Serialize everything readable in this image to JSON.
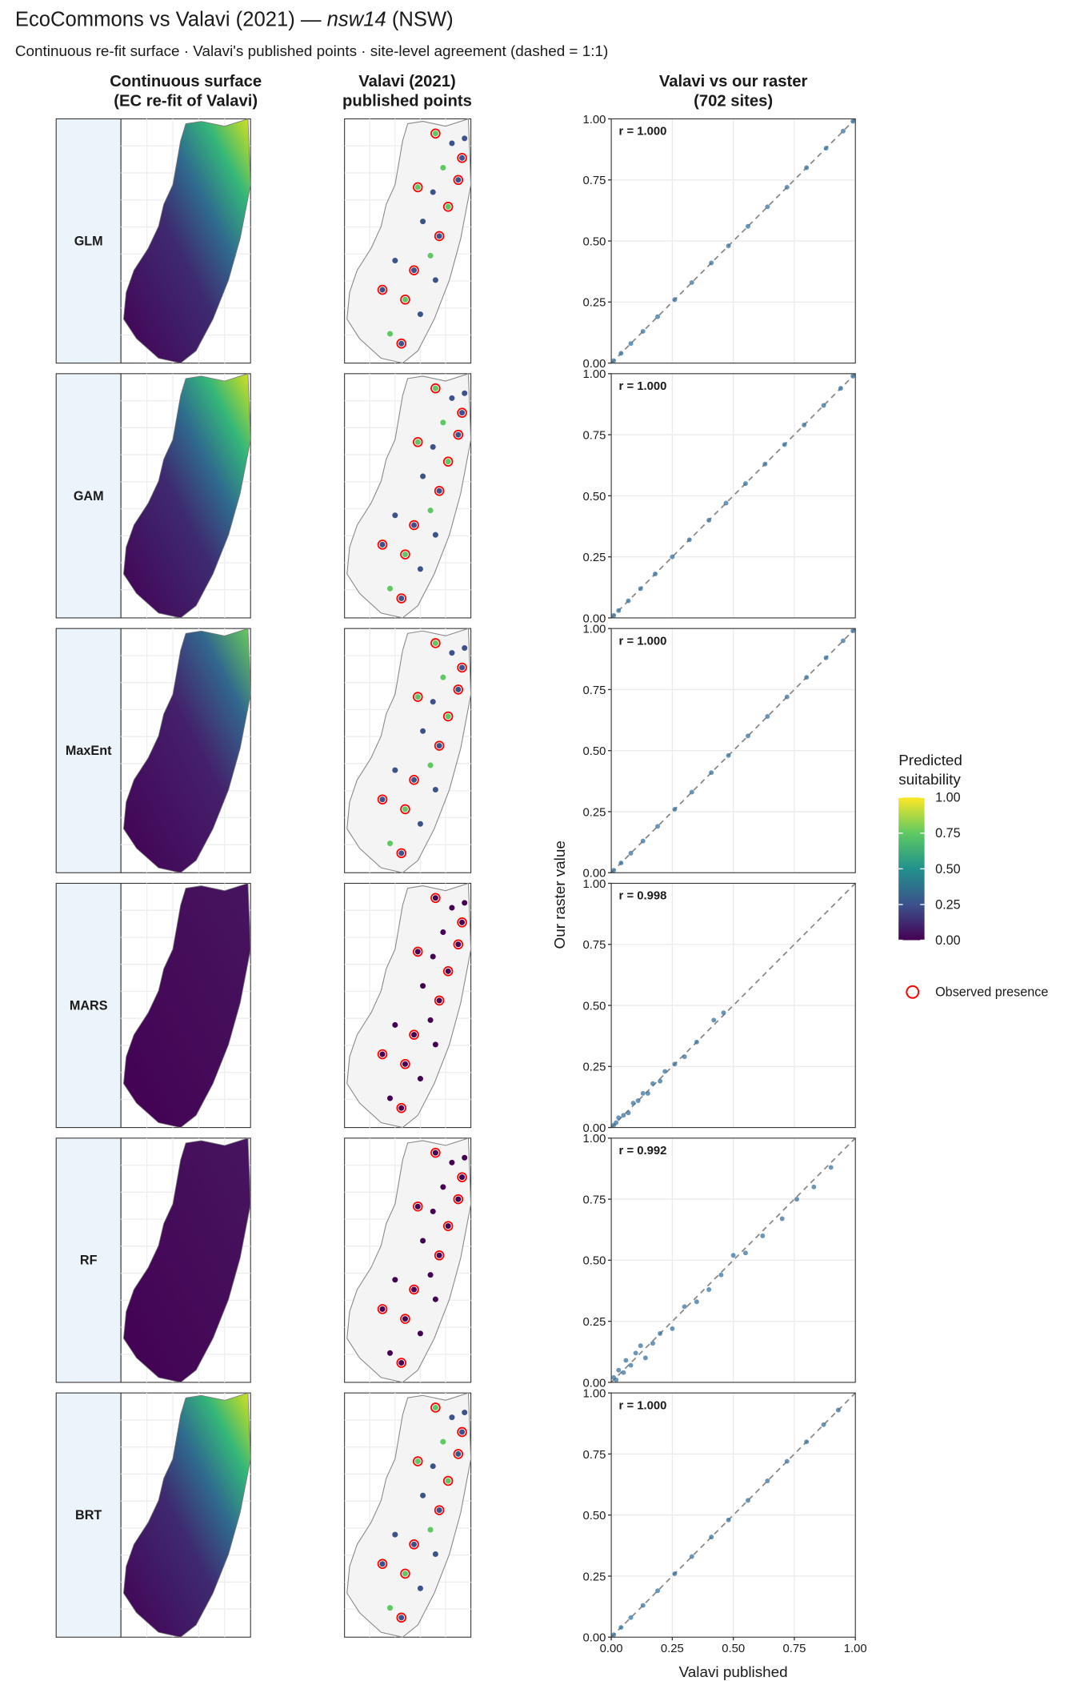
{
  "header": {
    "title": "EcoCommons vs Valavi (2021) — ",
    "title_species": "nsw14",
    "title_suffix": " (NSW)",
    "subtitle": "Continuous re-fit surface · Valavi's published points · site-level agreement (dashed = 1:1)"
  },
  "columns": [
    [
      "Continuous surface",
      "(EC re-fit of Valavi)"
    ],
    [
      "Valavi (2021)",
      "published points"
    ],
    [
      "Valavi vs our raster",
      "(702 sites)"
    ]
  ],
  "axes": {
    "xlabel": "Valavi published",
    "ylabel": "Our raster value"
  },
  "legend": {
    "title": [
      "Predicted",
      "suitability"
    ],
    "lim": [
      0,
      1
    ],
    "ticks": [
      {
        "value": 1,
        "label": "1.00"
      },
      {
        "value": 0.75,
        "label": "0.75"
      },
      {
        "value": 0.5,
        "label": "0.50"
      },
      {
        "value": 0.25,
        "label": "0.25"
      },
      {
        "value": 0,
        "label": "0.00"
      }
    ],
    "presence_label": "Observed presence",
    "presence_color": "#ff0000"
  },
  "chart_data": [
    {
      "type": "scatter",
      "panel": "GLM",
      "annotation": "r = 1.000",
      "color": "#3a73a0",
      "surface": "bright",
      "x": [
        0.01,
        0.04,
        0.08,
        0.13,
        0.19,
        0.26,
        0.33,
        0.41,
        0.48,
        0.56,
        0.64,
        0.72,
        0.8,
        0.88,
        0.95,
        0.99
      ],
      "y": [
        0.01,
        0.04,
        0.08,
        0.13,
        0.19,
        0.26,
        0.33,
        0.41,
        0.48,
        0.56,
        0.64,
        0.72,
        0.8,
        0.88,
        0.95,
        0.99
      ],
      "xlim": [
        0,
        1
      ],
      "ylim": [
        0,
        1
      ],
      "yticks": [
        {
          "value": 0,
          "label": "0.00"
        },
        {
          "value": 0.25,
          "label": "0.25"
        },
        {
          "value": 0.5,
          "label": "0.50"
        },
        {
          "value": 0.75,
          "label": "0.75"
        },
        {
          "value": 1,
          "label": "1.00"
        }
      ]
    },
    {
      "type": "scatter",
      "panel": "GAM",
      "annotation": "r = 1.000",
      "color": "#3a73a0",
      "surface": "bright",
      "x": [
        0.01,
        0.03,
        0.07,
        0.12,
        0.18,
        0.25,
        0.32,
        0.4,
        0.47,
        0.55,
        0.63,
        0.71,
        0.79,
        0.87,
        0.94,
        0.99
      ],
      "y": [
        0.01,
        0.03,
        0.07,
        0.12,
        0.18,
        0.25,
        0.32,
        0.4,
        0.47,
        0.55,
        0.63,
        0.71,
        0.79,
        0.87,
        0.94,
        0.99
      ],
      "xlim": [
        0,
        1
      ],
      "ylim": [
        0,
        1
      ],
      "yticks": [
        {
          "value": 0,
          "label": "0.00"
        },
        {
          "value": 0.25,
          "label": "0.25"
        },
        {
          "value": 0.5,
          "label": "0.50"
        },
        {
          "value": 0.75,
          "label": "0.75"
        },
        {
          "value": 1,
          "label": "1.00"
        }
      ]
    },
    {
      "type": "scatter",
      "panel": "MaxEnt",
      "annotation": "r = 1.000",
      "color": "#3a73a0",
      "surface": "medium",
      "x": [
        0.01,
        0.04,
        0.08,
        0.13,
        0.19,
        0.26,
        0.33,
        0.41,
        0.48,
        0.56,
        0.64,
        0.72,
        0.8,
        0.88,
        0.95,
        0.99
      ],
      "y": [
        0.01,
        0.04,
        0.08,
        0.13,
        0.19,
        0.26,
        0.33,
        0.41,
        0.48,
        0.56,
        0.64,
        0.72,
        0.8,
        0.88,
        0.95,
        0.99
      ],
      "xlim": [
        0,
        1
      ],
      "ylim": [
        0,
        1
      ],
      "yticks": [
        {
          "value": 0,
          "label": "0.00"
        },
        {
          "value": 0.25,
          "label": "0.25"
        },
        {
          "value": 0.5,
          "label": "0.50"
        },
        {
          "value": 0.75,
          "label": "0.75"
        },
        {
          "value": 1,
          "label": "1.00"
        }
      ]
    },
    {
      "type": "scatter",
      "panel": "MARS",
      "annotation": "r = 0.998",
      "color": "#3a73a0",
      "surface": "dark",
      "x": [
        0.01,
        0.02,
        0.03,
        0.05,
        0.07,
        0.09,
        0.11,
        0.13,
        0.15,
        0.17,
        0.2,
        0.22,
        0.26,
        0.3,
        0.35,
        0.42,
        0.46
      ],
      "y": [
        0.01,
        0.02,
        0.04,
        0.05,
        0.06,
        0.1,
        0.11,
        0.14,
        0.14,
        0.18,
        0.19,
        0.23,
        0.26,
        0.29,
        0.35,
        0.44,
        0.47
      ],
      "xlim": [
        0,
        1
      ],
      "ylim": [
        0,
        1
      ],
      "yticks": [
        {
          "value": 0,
          "label": "0.00"
        },
        {
          "value": 0.25,
          "label": "0.25"
        },
        {
          "value": 0.5,
          "label": "0.50"
        },
        {
          "value": 0.75,
          "label": "0.75"
        },
        {
          "value": 1,
          "label": "1.00"
        }
      ]
    },
    {
      "type": "scatter",
      "panel": "RF",
      "annotation": "r = 0.992",
      "color": "#3a73a0",
      "surface": "dark",
      "x": [
        0.01,
        0.02,
        0.03,
        0.05,
        0.06,
        0.08,
        0.1,
        0.12,
        0.14,
        0.17,
        0.2,
        0.25,
        0.3,
        0.35,
        0.4,
        0.45,
        0.5,
        0.55,
        0.62,
        0.7,
        0.76,
        0.83,
        0.9
      ],
      "y": [
        0.02,
        0.01,
        0.05,
        0.04,
        0.09,
        0.07,
        0.12,
        0.15,
        0.1,
        0.16,
        0.2,
        0.22,
        0.31,
        0.33,
        0.38,
        0.44,
        0.52,
        0.53,
        0.6,
        0.67,
        0.75,
        0.8,
        0.88
      ],
      "xlim": [
        0,
        1
      ],
      "ylim": [
        0,
        1
      ],
      "yticks": [
        {
          "value": 0,
          "label": "0.00"
        },
        {
          "value": 0.25,
          "label": "0.25"
        },
        {
          "value": 0.5,
          "label": "0.50"
        },
        {
          "value": 0.75,
          "label": "0.75"
        },
        {
          "value": 1,
          "label": "1.00"
        }
      ]
    },
    {
      "type": "scatter",
      "panel": "BRT",
      "annotation": "r = 1.000",
      "color": "#3a73a0",
      "surface": "bright",
      "x": [
        0.01,
        0.04,
        0.08,
        0.13,
        0.19,
        0.26,
        0.33,
        0.41,
        0.48,
        0.56,
        0.64,
        0.72,
        0.8,
        0.87,
        0.93
      ],
      "y": [
        0.01,
        0.04,
        0.08,
        0.13,
        0.19,
        0.26,
        0.33,
        0.41,
        0.48,
        0.56,
        0.64,
        0.72,
        0.8,
        0.87,
        0.93
      ],
      "xlim": [
        0,
        1
      ],
      "ylim": [
        0,
        1
      ],
      "yticks": [
        {
          "value": 0,
          "label": "0.00"
        },
        {
          "value": 0.25,
          "label": "0.25"
        },
        {
          "value": 0.5,
          "label": "0.50"
        },
        {
          "value": 0.75,
          "label": "0.75"
        },
        {
          "value": 1,
          "label": "1.00"
        }
      ],
      "xticks": [
        {
          "value": 0,
          "label": "0.00"
        },
        {
          "value": 0.25,
          "label": "0.25"
        },
        {
          "value": 0.5,
          "label": "0.50"
        },
        {
          "value": 0.75,
          "label": "0.75"
        },
        {
          "value": 1,
          "label": "1.00"
        }
      ]
    }
  ]
}
